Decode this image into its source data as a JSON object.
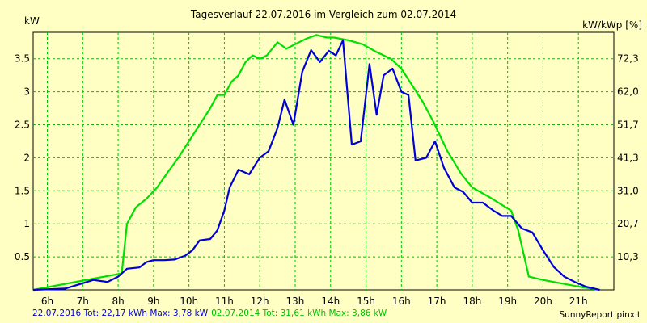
{
  "chart_data": {
    "type": "line",
    "title": "Tagesverlauf 22.07.2016 im Vergleich zum 02.07.2014",
    "ylabel_left": "kW",
    "ylabel_right": "kW/kWp [%]",
    "ylim": [
      0,
      3.9
    ],
    "xlim": [
      5.6,
      22.0
    ],
    "x_ticks": [
      "6h",
      "7h",
      "8h",
      "9h",
      "10h",
      "11h",
      "12h",
      "13h",
      "14h",
      "15h",
      "16h",
      "17h",
      "18h",
      "19h",
      "20h",
      "21h"
    ],
    "x_tick_values": [
      6,
      7,
      8,
      9,
      10,
      11,
      12,
      13,
      14,
      15,
      16,
      17,
      18,
      19,
      20,
      21
    ],
    "y_ticks_left": [
      "0.5",
      "1",
      "1.5",
      "2",
      "2.5",
      "3",
      "3.5"
    ],
    "y_tick_values_left": [
      0.5,
      1,
      1.5,
      2,
      2.5,
      3,
      3.5
    ],
    "y_ticks_right": [
      "10,3",
      "20,7",
      "31,0",
      "41,3",
      "51,7",
      "62,0",
      "72,3"
    ],
    "y_tick_values_right": [
      0.5,
      1,
      1.5,
      2,
      2.5,
      3,
      3.5
    ],
    "grid": true,
    "series": [
      {
        "name": "22.07.2016",
        "color": "#0000d8",
        "x": [
          5.6,
          6.5,
          7.0,
          7.3,
          7.7,
          8.0,
          8.25,
          8.6,
          8.8,
          9.0,
          9.3,
          9.6,
          9.9,
          10.1,
          10.3,
          10.6,
          10.8,
          11.0,
          11.15,
          11.4,
          11.7,
          12.0,
          12.25,
          12.5,
          12.7,
          12.95,
          13.2,
          13.45,
          13.7,
          13.95,
          14.15,
          14.35,
          14.6,
          14.85,
          15.1,
          15.3,
          15.5,
          15.75,
          16.0,
          16.2,
          16.4,
          16.7,
          16.95,
          17.2,
          17.5,
          17.75,
          18.0,
          18.3,
          18.6,
          18.85,
          19.1,
          19.4,
          19.7,
          20.0,
          20.3,
          20.6,
          20.9,
          21.2,
          21.6
        ],
        "y": [
          0,
          0.02,
          0.1,
          0.15,
          0.12,
          0.2,
          0.32,
          0.34,
          0.42,
          0.45,
          0.45,
          0.46,
          0.52,
          0.6,
          0.75,
          0.77,
          0.9,
          1.2,
          1.55,
          1.82,
          1.75,
          2.0,
          2.1,
          2.45,
          2.88,
          2.5,
          3.3,
          3.63,
          3.45,
          3.62,
          3.55,
          3.78,
          2.2,
          2.25,
          3.42,
          2.65,
          3.25,
          3.35,
          3.0,
          2.95,
          1.96,
          2.0,
          2.25,
          1.85,
          1.55,
          1.48,
          1.32,
          1.32,
          1.2,
          1.12,
          1.12,
          0.93,
          0.87,
          0.6,
          0.35,
          0.2,
          0.12,
          0.05,
          0
        ]
      },
      {
        "name": "02.07.2014",
        "color": "#00e000",
        "x": [
          5.6,
          8.1,
          8.25,
          8.5,
          8.8,
          9.1,
          9.4,
          9.7,
          10.0,
          10.3,
          10.6,
          10.8,
          11.0,
          11.2,
          11.4,
          11.6,
          11.8,
          12.0,
          12.2,
          12.5,
          12.75,
          13.0,
          13.3,
          13.6,
          13.9,
          14.1,
          14.5,
          14.9,
          15.3,
          15.7,
          16.0,
          16.3,
          16.6,
          16.9,
          17.3,
          17.7,
          18.0,
          18.5,
          18.8,
          19.1,
          19.3,
          19.6,
          20.0,
          20.5,
          21.0,
          21.6
        ],
        "y": [
          0,
          0.25,
          1.0,
          1.25,
          1.38,
          1.55,
          1.78,
          2.0,
          2.25,
          2.5,
          2.75,
          2.95,
          2.95,
          3.15,
          3.25,
          3.45,
          3.55,
          3.5,
          3.55,
          3.75,
          3.65,
          3.72,
          3.8,
          3.86,
          3.82,
          3.82,
          3.78,
          3.72,
          3.6,
          3.5,
          3.35,
          3.1,
          2.85,
          2.55,
          2.1,
          1.75,
          1.55,
          1.4,
          1.3,
          1.2,
          0.9,
          0.2,
          0.15,
          0.1,
          0.05,
          0
        ]
      }
    ]
  },
  "footer": {
    "s1_label": "22.07.2016 Tot: 22,17 kWh Max: 3,78 kW",
    "s2_label": "02.07.2014 Tot: 31,61 kWh Max: 3,86 kW",
    "s1_color": "#0000d8",
    "s2_color": "#00c000",
    "brand": "SunnyReport pinxit"
  }
}
